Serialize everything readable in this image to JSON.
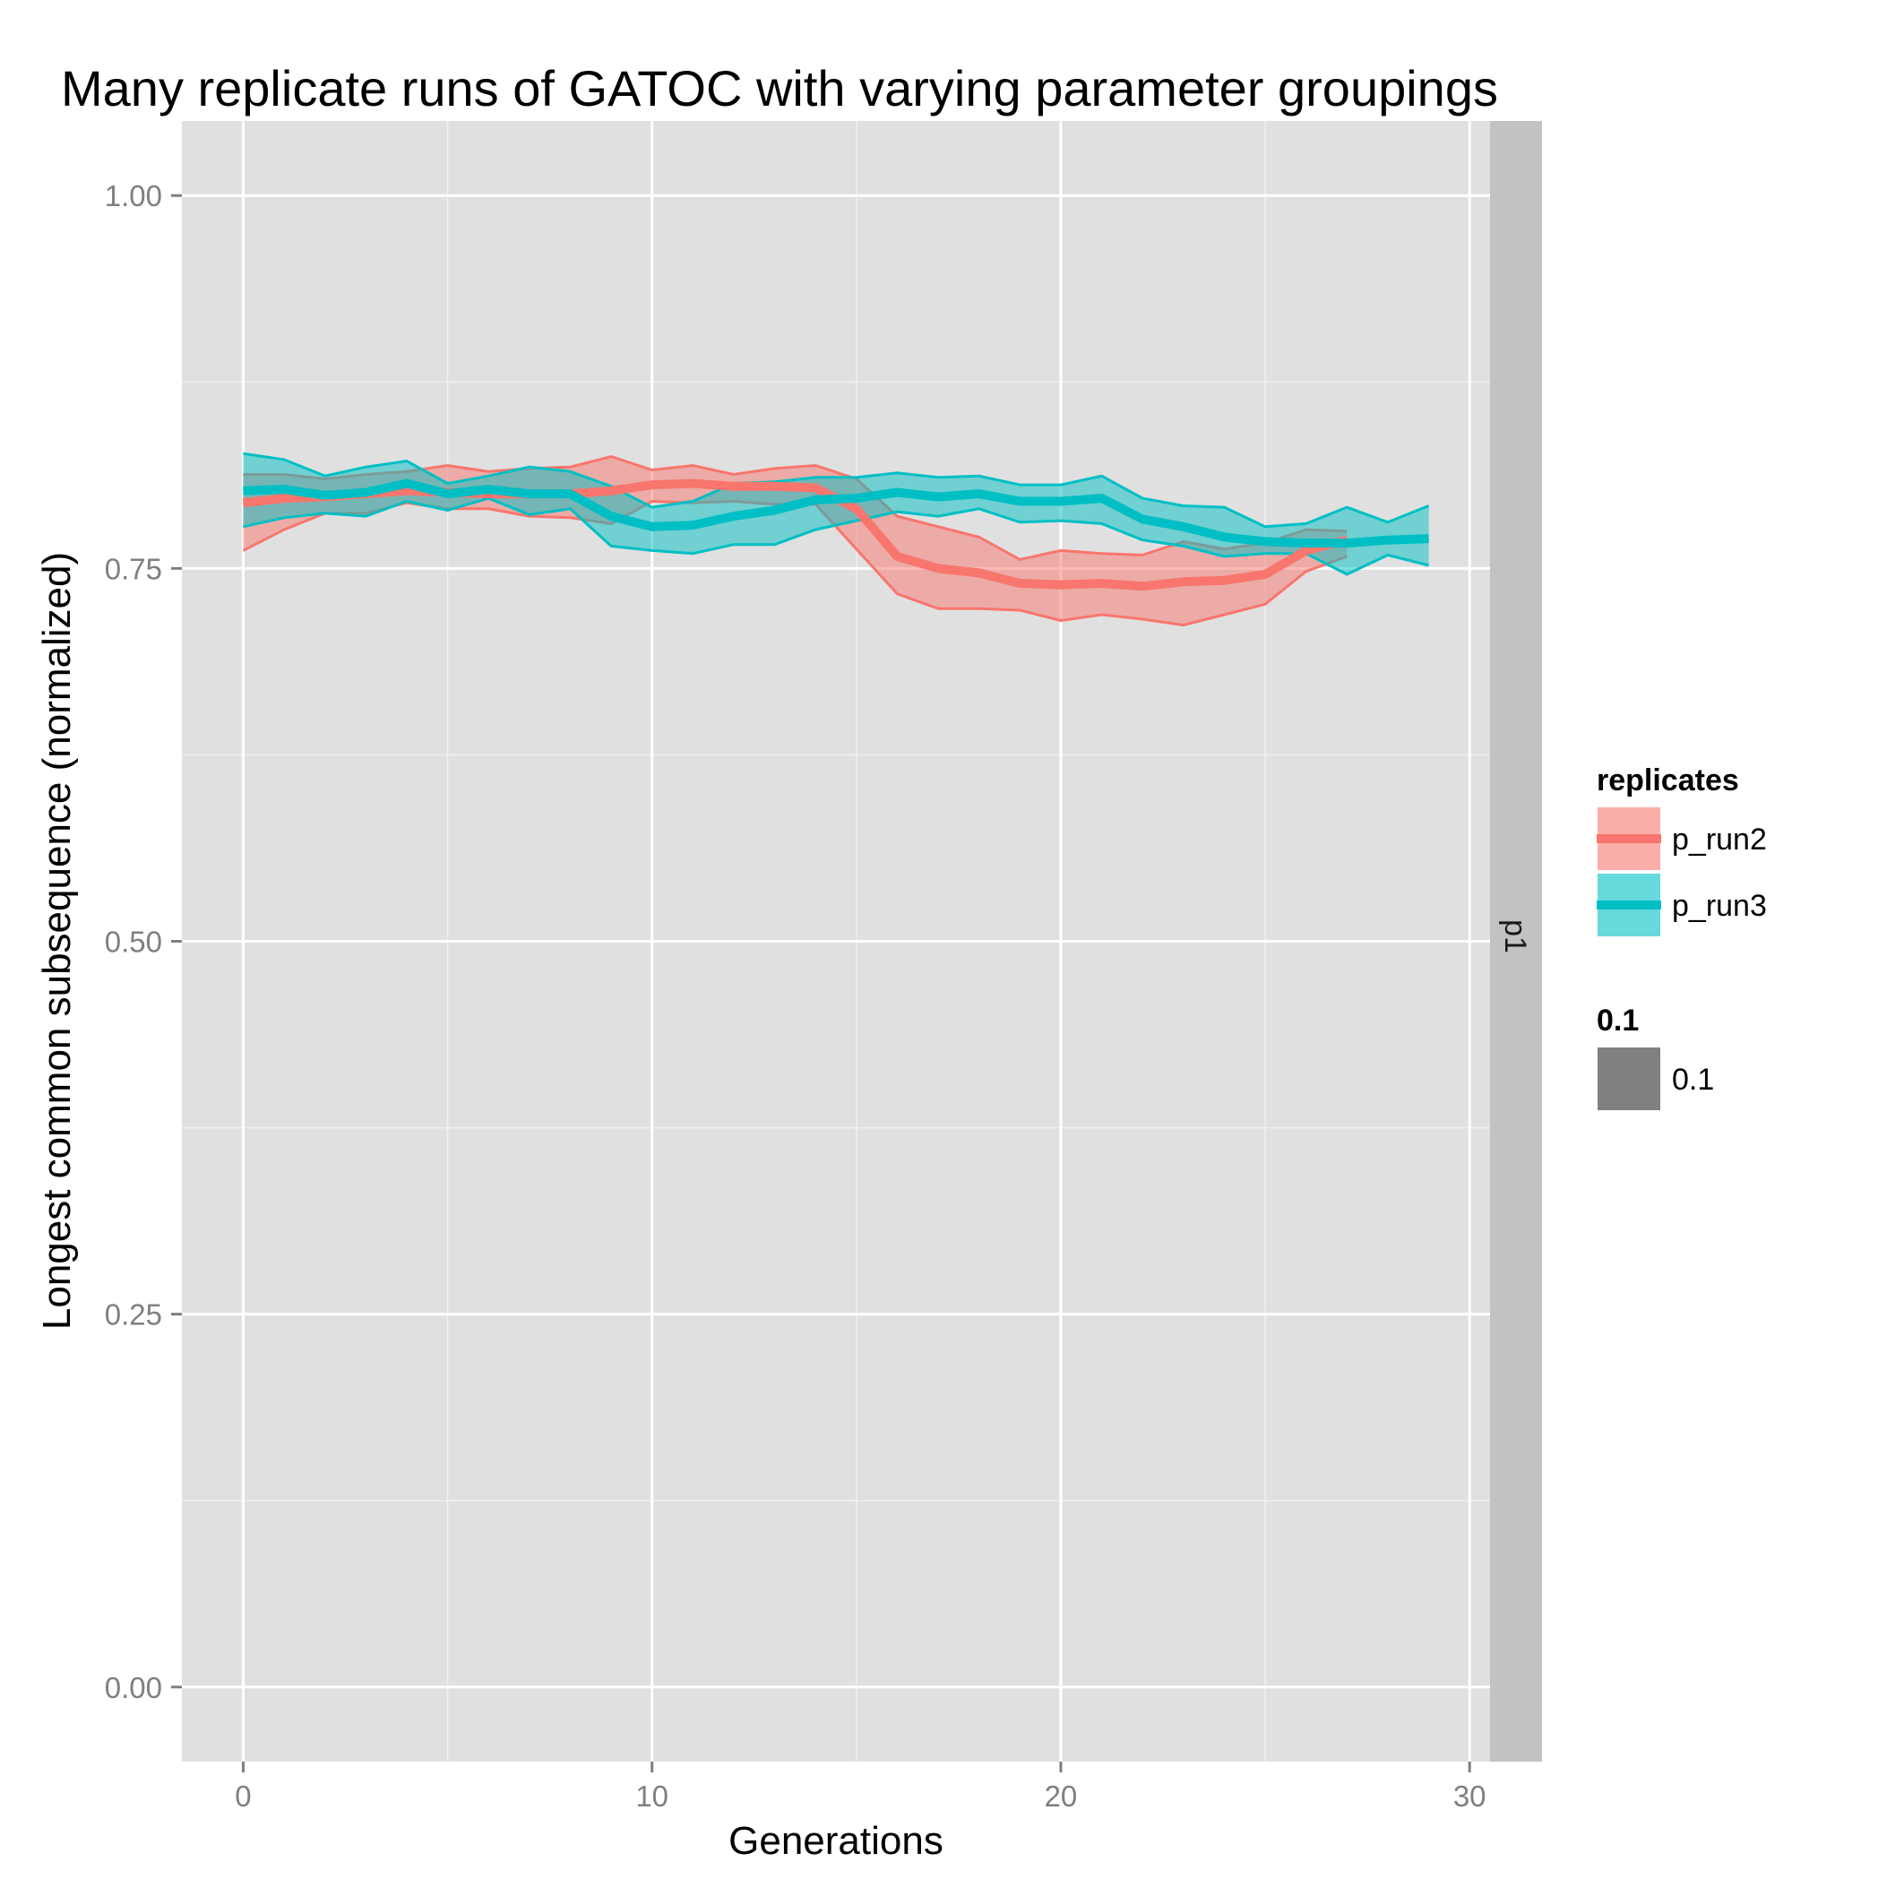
{
  "chart_data": {
    "type": "area",
    "title": "Many replicate runs of GATOC with varying parameter groupings",
    "xlabel": "Generations",
    "ylabel": "Longest common subsequence (normalized)",
    "xlim": [
      -1.5,
      30.5
    ],
    "ylim": [
      -0.05,
      1.05
    ],
    "x_ticks": [
      0,
      10,
      20,
      30
    ],
    "x_tick_labels": [
      "0",
      "10",
      "20",
      "30"
    ],
    "y_ticks": [
      0,
      0.25,
      0.5,
      0.75,
      1.0
    ],
    "y_tick_labels": [
      "0.00",
      "0.25",
      "0.50",
      "0.75",
      "1.00"
    ],
    "grid": true,
    "facet_strip_label": "p1",
    "legend_position": "right",
    "legend": {
      "groups": [
        {
          "title": "replicates",
          "entries": [
            {
              "label": "p_run2",
              "color": "#F8766D"
            },
            {
              "label": "p_run3",
              "color": "#00BFC4"
            }
          ]
        },
        {
          "title": "0.1",
          "entries": [
            {
              "label": "0.1",
              "color": "#808080"
            }
          ]
        }
      ]
    },
    "series": [
      {
        "name": "p_run2",
        "color": "#F8766D",
        "x": [
          0,
          1,
          2,
          3,
          4,
          5,
          6,
          7,
          8,
          9,
          10,
          11,
          12,
          13,
          14,
          15,
          16,
          17,
          18,
          19,
          20,
          21,
          22,
          23,
          24,
          25,
          26,
          27
        ],
        "mean": [
          0.794,
          0.797,
          0.798,
          0.8,
          0.802,
          0.801,
          0.8,
          0.8,
          0.8,
          0.802,
          0.806,
          0.807,
          0.805,
          0.805,
          0.804,
          0.79,
          0.758,
          0.75,
          0.747,
          0.74,
          0.739,
          0.74,
          0.738,
          0.741,
          0.742,
          0.746,
          0.762,
          0.769
        ],
        "upper": [
          0.813,
          0.813,
          0.81,
          0.813,
          0.815,
          0.819,
          0.815,
          0.817,
          0.818,
          0.825,
          0.816,
          0.819,
          0.813,
          0.817,
          0.819,
          0.81,
          0.785,
          0.778,
          0.771,
          0.756,
          0.762,
          0.76,
          0.759,
          0.768,
          0.763,
          0.767,
          0.776,
          0.775
        ],
        "lower": [
          0.762,
          0.776,
          0.787,
          0.787,
          0.794,
          0.79,
          0.79,
          0.785,
          0.784,
          0.78,
          0.795,
          0.794,
          0.795,
          0.793,
          0.793,
          0.763,
          0.733,
          0.723,
          0.723,
          0.722,
          0.715,
          0.719,
          0.716,
          0.712,
          0.719,
          0.726,
          0.748,
          0.758
        ]
      },
      {
        "name": "p_run3",
        "color": "#00BFC4",
        "x": [
          0,
          1,
          2,
          3,
          4,
          5,
          6,
          7,
          8,
          9,
          10,
          11,
          12,
          13,
          14,
          15,
          16,
          17,
          18,
          19,
          20,
          21,
          22,
          23,
          24,
          25,
          26,
          27,
          28,
          29
        ],
        "mean": [
          0.802,
          0.803,
          0.799,
          0.801,
          0.807,
          0.8,
          0.803,
          0.8,
          0.8,
          0.785,
          0.778,
          0.779,
          0.785,
          0.789,
          0.796,
          0.797,
          0.801,
          0.798,
          0.8,
          0.795,
          0.795,
          0.797,
          0.783,
          0.778,
          0.771,
          0.768,
          0.767,
          0.767,
          0.769,
          0.77
        ],
        "upper": [
          0.827,
          0.823,
          0.812,
          0.818,
          0.822,
          0.807,
          0.812,
          0.818,
          0.815,
          0.805,
          0.791,
          0.795,
          0.807,
          0.808,
          0.811,
          0.811,
          0.814,
          0.811,
          0.812,
          0.806,
          0.806,
          0.812,
          0.797,
          0.792,
          0.791,
          0.778,
          0.78,
          0.791,
          0.781,
          0.792
        ],
        "lower": [
          0.778,
          0.784,
          0.787,
          0.785,
          0.795,
          0.789,
          0.797,
          0.786,
          0.79,
          0.765,
          0.762,
          0.76,
          0.766,
          0.766,
          0.776,
          0.782,
          0.788,
          0.785,
          0.79,
          0.781,
          0.782,
          0.78,
          0.769,
          0.765,
          0.758,
          0.76,
          0.76,
          0.746,
          0.759,
          0.752
        ]
      }
    ]
  }
}
